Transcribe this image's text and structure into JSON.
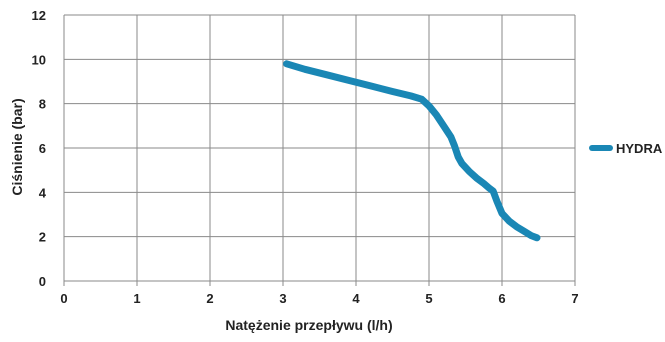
{
  "chart_data": {
    "type": "line",
    "title": "",
    "xlabel": "Natężenie przepływu (l/h)",
    "ylabel": "Ciśnienie (bar)",
    "xlim": [
      0,
      7
    ],
    "ylim": [
      0,
      12
    ],
    "xticks": [
      "0",
      "1",
      "2",
      "3",
      "4",
      "5",
      "6",
      "7"
    ],
    "yticks": [
      "0",
      "2",
      "4",
      "6",
      "8",
      "10",
      "12"
    ],
    "grid": true,
    "legend_position": "right",
    "series": [
      {
        "name": "HYDRA",
        "color": "#1a87b5",
        "x": [
          3.05,
          3.3,
          3.6,
          3.9,
          4.2,
          4.5,
          4.75,
          4.9,
          5.0,
          5.1,
          5.2,
          5.3,
          5.35,
          5.4,
          5.45,
          5.55,
          5.65,
          5.75,
          5.82,
          5.88,
          5.93,
          6.0,
          6.1,
          6.2,
          6.3,
          6.4,
          6.48
        ],
        "y": [
          9.8,
          9.55,
          9.3,
          9.05,
          8.8,
          8.55,
          8.35,
          8.2,
          7.9,
          7.5,
          7.0,
          6.5,
          6.1,
          5.6,
          5.3,
          4.95,
          4.65,
          4.4,
          4.2,
          4.05,
          3.6,
          3.05,
          2.7,
          2.45,
          2.25,
          2.05,
          1.95
        ]
      }
    ]
  }
}
